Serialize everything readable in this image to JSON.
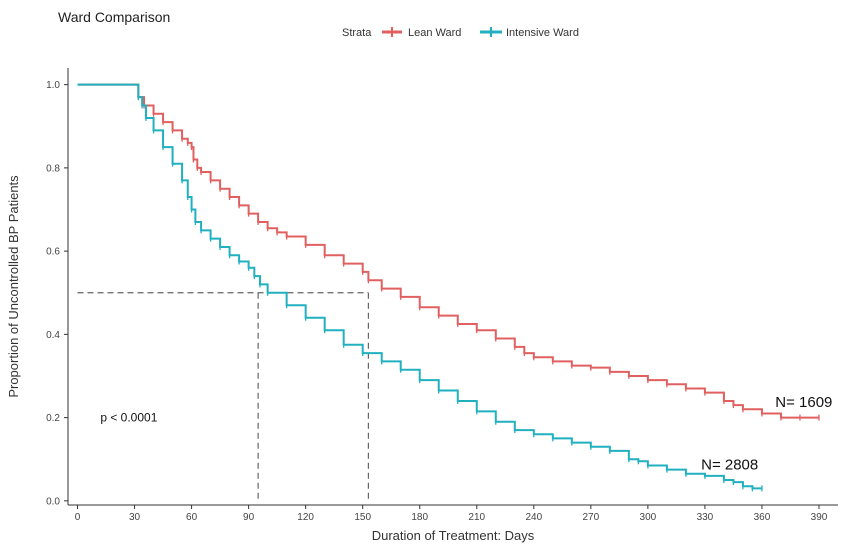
{
  "chart_data": {
    "type": "line",
    "title": "Ward Comparison",
    "xlabel": "Duration of Treatment: Days",
    "ylabel": "Proportion of Uncontrolled BP Patients",
    "xlim": [
      -5,
      400
    ],
    "ylim": [
      -0.01,
      1.04
    ],
    "xticks": [
      "0",
      "30",
      "60",
      "90",
      "120",
      "150",
      "180",
      "210",
      "240",
      "270",
      "300",
      "330",
      "360",
      "390"
    ],
    "yticks": [
      "0.0",
      "0.2",
      "0.4",
      "0.6",
      "0.8",
      "1.0"
    ],
    "legend": {
      "title": "Strata",
      "position": "top"
    },
    "grid": false,
    "series": [
      {
        "name": "Lean Ward",
        "color": "#e06060",
        "x": [
          0,
          30,
          32,
          35,
          40,
          45,
          50,
          55,
          58,
          60,
          61,
          63,
          65,
          70,
          75,
          80,
          85,
          90,
          95,
          100,
          105,
          110,
          120,
          130,
          140,
          150,
          153,
          160,
          170,
          180,
          190,
          200,
          210,
          220,
          230,
          235,
          240,
          250,
          260,
          270,
          280,
          290,
          300,
          310,
          320,
          330,
          340,
          345,
          350,
          360,
          370,
          380,
          390
        ],
        "y": [
          1.0,
          1.0,
          0.97,
          0.95,
          0.93,
          0.91,
          0.89,
          0.87,
          0.86,
          0.85,
          0.82,
          0.8,
          0.79,
          0.77,
          0.75,
          0.73,
          0.71,
          0.69,
          0.67,
          0.655,
          0.645,
          0.635,
          0.615,
          0.59,
          0.57,
          0.55,
          0.53,
          0.51,
          0.49,
          0.465,
          0.445,
          0.425,
          0.41,
          0.39,
          0.37,
          0.355,
          0.345,
          0.335,
          0.325,
          0.32,
          0.31,
          0.3,
          0.29,
          0.28,
          0.27,
          0.26,
          0.24,
          0.23,
          0.22,
          0.21,
          0.2,
          0.2,
          0.2
        ]
      },
      {
        "name": "Intensive Ward",
        "color": "#20b0c0",
        "x": [
          0,
          30,
          32,
          34,
          36,
          40,
          45,
          50,
          55,
          58,
          60,
          62,
          65,
          70,
          75,
          80,
          85,
          90,
          93,
          96,
          100,
          110,
          120,
          130,
          140,
          150,
          160,
          170,
          180,
          190,
          200,
          210,
          220,
          230,
          240,
          250,
          260,
          270,
          280,
          290,
          295,
          300,
          310,
          320,
          330,
          340,
          345,
          350,
          355,
          360
        ],
        "y": [
          1.0,
          1.0,
          0.97,
          0.95,
          0.92,
          0.89,
          0.85,
          0.81,
          0.77,
          0.73,
          0.7,
          0.67,
          0.65,
          0.63,
          0.61,
          0.59,
          0.575,
          0.56,
          0.54,
          0.52,
          0.5,
          0.47,
          0.44,
          0.41,
          0.375,
          0.355,
          0.335,
          0.315,
          0.29,
          0.265,
          0.24,
          0.215,
          0.19,
          0.17,
          0.16,
          0.15,
          0.14,
          0.13,
          0.12,
          0.1,
          0.095,
          0.085,
          0.075,
          0.065,
          0.06,
          0.05,
          0.045,
          0.035,
          0.03,
          0.03
        ]
      }
    ],
    "median_lines": {
      "y": 0.5,
      "x": [
        95,
        153
      ],
      "color": "#666666"
    },
    "annotations": [
      {
        "text": "p < 0.0001",
        "x": 12,
        "y": 0.2
      },
      {
        "text": "N= 1609",
        "x": 367,
        "y": 0.235
      },
      {
        "text": "N= 2808",
        "x": 328,
        "y": 0.085
      }
    ]
  }
}
